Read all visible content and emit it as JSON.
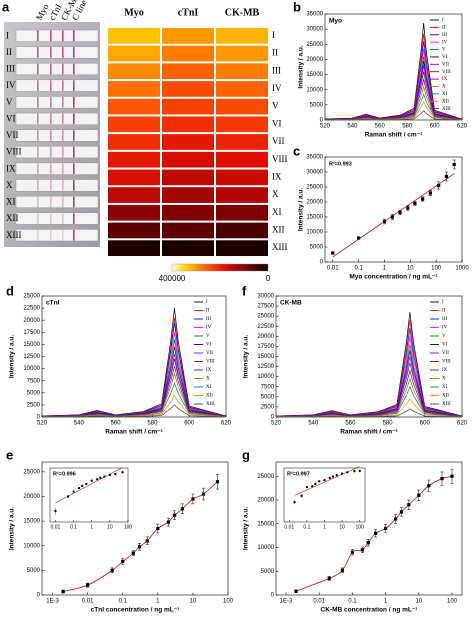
{
  "chart_data": [
    {
      "type": "heatmap",
      "label": "a",
      "strip_lines": [
        "Myo",
        "cTnI",
        "CK-MB",
        "C line"
      ],
      "columns": [
        "Myo",
        "cTnI",
        "CK-MB"
      ],
      "categories": [
        "I",
        "II",
        "III",
        "IV",
        "V",
        "VI",
        "VII",
        "VIII",
        "IX",
        "X",
        "XI",
        "XII",
        "XIII"
      ],
      "values": [
        [
          330000,
          300000,
          320000
        ],
        [
          310000,
          280000,
          300000
        ],
        [
          290000,
          260000,
          280000
        ],
        [
          270000,
          240000,
          260000
        ],
        [
          250000,
          230000,
          240000
        ],
        [
          230000,
          210000,
          220000
        ],
        [
          210000,
          190000,
          200000
        ],
        [
          190000,
          170000,
          180000
        ],
        [
          170000,
          150000,
          160000
        ],
        [
          150000,
          130000,
          140000
        ],
        [
          110000,
          100000,
          100000
        ],
        [
          70000,
          70000,
          60000
        ],
        [
          20000,
          20000,
          20000
        ]
      ],
      "zlim": [
        0,
        400000
      ],
      "zticks": [
        400000,
        0
      ]
    },
    {
      "type": "line",
      "label": "b",
      "title": "Myo",
      "xlabel": "Raman shift / cm⁻¹",
      "ylabel": "Intensity / a.u.",
      "x": [
        520,
        540,
        550,
        560,
        575,
        585,
        590,
        592,
        594,
        600,
        620
      ],
      "xlim": [
        520,
        620
      ],
      "xticks": [
        520,
        540,
        560,
        580,
        600,
        620
      ],
      "ylim": [
        0,
        35000
      ],
      "yticks": [
        0,
        5000,
        10000,
        15000,
        20000,
        25000,
        30000,
        35000
      ],
      "legend": "upper right",
      "series": [
        {
          "name": "I",
          "color": "#000000",
          "values": [
            320,
            640,
            1920,
            640,
            1600,
            3840,
            22400,
            32000,
            22400,
            3200,
            320
          ]
        },
        {
          "name": "II",
          "color": "#ff0000",
          "values": [
            285,
            570,
            1710,
            570,
            1425,
            3420,
            19950,
            28500,
            19950,
            2850,
            285
          ]
        },
        {
          "name": "III",
          "color": "#0000ff",
          "values": [
            260,
            520,
            1560,
            520,
            1300,
            3120,
            18200,
            26000,
            18200,
            2600,
            260
          ]
        },
        {
          "name": "IV",
          "color": "#ff00ff",
          "values": [
            235,
            470,
            1410,
            470,
            1175,
            2820,
            16450,
            23500,
            16450,
            2350,
            235
          ]
        },
        {
          "name": "V",
          "color": "#008000",
          "values": [
            210,
            420,
            1260,
            420,
            1050,
            2520,
            14700,
            21000,
            14700,
            2100,
            210
          ]
        },
        {
          "name": "VI",
          "color": "#000080",
          "values": [
            195,
            390,
            1170,
            390,
            975,
            2340,
            13650,
            19500,
            13650,
            1950,
            195
          ]
        },
        {
          "name": "VII",
          "color": "#8000ff",
          "values": [
            180,
            360,
            1080,
            360,
            900,
            2160,
            12600,
            18000,
            12600,
            1800,
            180
          ]
        },
        {
          "name": "VIII",
          "color": "#800040",
          "values": [
            160,
            320,
            960,
            320,
            800,
            1920,
            11200,
            16000,
            11200,
            1600,
            160
          ]
        },
        {
          "name": "IX",
          "color": "#800080",
          "values": [
            135,
            270,
            810,
            270,
            675,
            1620,
            9450,
            13500,
            9450,
            1350,
            135
          ]
        },
        {
          "name": "X",
          "color": "#808000",
          "values": [
            110,
            220,
            660,
            220,
            550,
            1320,
            7700,
            11000,
            7700,
            1100,
            110
          ]
        },
        {
          "name": "XI",
          "color": "#008080",
          "values": [
            85,
            170,
            510,
            170,
            425,
            1020,
            5950,
            8500,
            5950,
            850,
            85
          ]
        },
        {
          "name": "XII",
          "color": "#ff8000",
          "values": [
            60,
            120,
            360,
            120,
            300,
            720,
            4200,
            6000,
            4200,
            600,
            60
          ]
        },
        {
          "name": "XIII",
          "color": "#404040",
          "values": [
            30,
            60,
            180,
            60,
            150,
            360,
            2100,
            3000,
            2100,
            300,
            30
          ]
        }
      ]
    },
    {
      "type": "scatter",
      "label": "c",
      "annotation": "R²=0.993",
      "xlabel": "Myo concentration / ng mL⁻¹",
      "ylabel": "Intensity / a.u.",
      "log_x": true,
      "fit": "linear",
      "fit_color": "#d40000",
      "color": "#000000",
      "xlim": [
        0.005,
        1000
      ],
      "xticks": [
        0.01,
        0.1,
        1,
        10,
        100,
        1000
      ],
      "ylim": [
        0,
        35000
      ],
      "yticks": [
        0,
        5000,
        10000,
        15000,
        20000,
        25000,
        30000,
        35000
      ],
      "x": [
        0.01,
        0.1,
        1,
        2,
        4,
        8,
        15,
        30,
        60,
        125,
        250,
        500
      ],
      "values": [
        3000,
        8000,
        13500,
        15000,
        16500,
        18000,
        19500,
        21000,
        23000,
        25500,
        28500,
        32500
      ],
      "errors": [
        300,
        400,
        800,
        900,
        700,
        800,
        600,
        700,
        900,
        1200,
        1500,
        1500
      ]
    },
    {
      "type": "line",
      "label": "d",
      "title": "cTnI",
      "xlabel": "Raman shift / cm⁻¹",
      "ylabel": "Intensity / a.u.",
      "x": [
        520,
        540,
        550,
        560,
        575,
        585,
        590,
        592,
        594,
        600,
        620
      ],
      "xlim": [
        520,
        620
      ],
      "xticks": [
        520,
        540,
        560,
        580,
        600,
        620
      ],
      "ylim": [
        0,
        25000
      ],
      "yticks": [
        0,
        2500,
        5000,
        7500,
        10000,
        12500,
        15000,
        17500,
        20000,
        22500,
        25000
      ],
      "legend": "upper right",
      "series": [
        {
          "name": "I",
          "color": "#000000",
          "values": [
            225,
            450,
            1350,
            450,
            1125,
            2700,
            15750,
            22500,
            15750,
            2250,
            225
          ]
        },
        {
          "name": "II",
          "color": "#ff0000",
          "values": [
            205,
            410,
            1230,
            410,
            1025,
            2460,
            14350,
            20500,
            14350,
            2050,
            205
          ]
        },
        {
          "name": "III",
          "color": "#0000ff",
          "values": [
            195,
            390,
            1170,
            390,
            975,
            2340,
            13650,
            19500,
            13650,
            1950,
            195
          ]
        },
        {
          "name": "IV",
          "color": "#ff00ff",
          "values": [
            175,
            350,
            1050,
            350,
            875,
            2100,
            12250,
            17500,
            12250,
            1750,
            175
          ]
        },
        {
          "name": "V",
          "color": "#008000",
          "values": [
            160,
            320,
            960,
            320,
            800,
            1920,
            11200,
            16000,
            11200,
            1600,
            160
          ]
        },
        {
          "name": "VI",
          "color": "#000080",
          "values": [
            145,
            290,
            870,
            290,
            725,
            1740,
            10150,
            14500,
            10150,
            1450,
            145
          ]
        },
        {
          "name": "VII",
          "color": "#8000ff",
          "values": [
            130,
            260,
            780,
            260,
            650,
            1560,
            9100,
            13000,
            9100,
            1300,
            130
          ]
        },
        {
          "name": "VIII",
          "color": "#800040",
          "values": [
            120,
            240,
            720,
            240,
            600,
            1440,
            8400,
            12000,
            8400,
            1200,
            120
          ]
        },
        {
          "name": "IX",
          "color": "#800080",
          "values": [
            105,
            210,
            630,
            210,
            525,
            1260,
            7350,
            10500,
            7350,
            1050,
            105
          ]
        },
        {
          "name": "X",
          "color": "#808000",
          "values": [
            90,
            180,
            540,
            180,
            450,
            1080,
            6300,
            9000,
            6300,
            900,
            90
          ]
        },
        {
          "name": "XI",
          "color": "#008080",
          "values": [
            70,
            140,
            420,
            140,
            350,
            840,
            4900,
            7000,
            4900,
            700,
            70
          ]
        },
        {
          "name": "XII",
          "color": "#ff8000",
          "values": [
            45,
            90,
            270,
            90,
            225,
            540,
            3150,
            4500,
            3150,
            450,
            45
          ]
        },
        {
          "name": "XIII",
          "color": "#404040",
          "values": [
            25,
            50,
            150,
            50,
            125,
            300,
            1750,
            2500,
            1750,
            250,
            25
          ]
        }
      ]
    },
    {
      "type": "line",
      "label": "f",
      "title": "CK-MB",
      "xlabel": "Raman shift / cm⁻¹",
      "ylabel": "Intensity / a.u.",
      "x": [
        520,
        540,
        550,
        560,
        575,
        585,
        590,
        592,
        594,
        600,
        620
      ],
      "xlim": [
        520,
        620
      ],
      "xticks": [
        520,
        540,
        560,
        580,
        600,
        620
      ],
      "ylim": [
        0,
        30000
      ],
      "yticks": [
        0,
        2500,
        5000,
        7500,
        10000,
        12500,
        15000,
        17500,
        20000,
        22500,
        25000,
        27500,
        30000
      ],
      "legend": "upper right",
      "series": [
        {
          "name": "I",
          "color": "#000000",
          "values": [
            260,
            520,
            1560,
            520,
            1300,
            3120,
            18200,
            26000,
            18200,
            2600,
            260
          ]
        },
        {
          "name": "II",
          "color": "#ff0000",
          "values": [
            240,
            480,
            1440,
            480,
            1200,
            2880,
            16800,
            24000,
            16800,
            2400,
            240
          ]
        },
        {
          "name": "III",
          "color": "#0000ff",
          "values": [
            220,
            440,
            1320,
            440,
            1100,
            2640,
            15400,
            22000,
            15400,
            2200,
            220
          ]
        },
        {
          "name": "IV",
          "color": "#ff00ff",
          "values": [
            200,
            400,
            1200,
            400,
            1000,
            2400,
            14000,
            20000,
            14000,
            2000,
            200
          ]
        },
        {
          "name": "V",
          "color": "#008000",
          "values": [
            180,
            360,
            1080,
            360,
            900,
            2160,
            12600,
            18000,
            12600,
            1800,
            180
          ]
        },
        {
          "name": "VI",
          "color": "#000080",
          "values": [
            165,
            330,
            990,
            330,
            825,
            1980,
            11550,
            16500,
            11550,
            1650,
            165
          ]
        },
        {
          "name": "VII",
          "color": "#8000ff",
          "values": [
            150,
            300,
            900,
            300,
            750,
            1800,
            10500,
            15000,
            10500,
            1500,
            150
          ]
        },
        {
          "name": "VIII",
          "color": "#800040",
          "values": [
            135,
            270,
            810,
            270,
            675,
            1620,
            9450,
            13500,
            9450,
            1350,
            135
          ]
        },
        {
          "name": "IX",
          "color": "#800080",
          "values": [
            115,
            230,
            690,
            230,
            575,
            1380,
            8050,
            11500,
            8050,
            1150,
            115
          ]
        },
        {
          "name": "X",
          "color": "#808000",
          "values": [
            95,
            190,
            570,
            190,
            475,
            1140,
            6650,
            9500,
            6650,
            950,
            95
          ]
        },
        {
          "name": "XI",
          "color": "#008080",
          "values": [
            75,
            150,
            450,
            150,
            375,
            900,
            5250,
            7500,
            5250,
            750,
            75
          ]
        },
        {
          "name": "XII",
          "color": "#ff8000",
          "values": [
            45,
            90,
            270,
            90,
            225,
            540,
            3150,
            4500,
            3150,
            450,
            45
          ]
        },
        {
          "name": "XIII",
          "color": "#404040",
          "values": [
            20,
            40,
            120,
            40,
            100,
            240,
            1400,
            2000,
            1400,
            200,
            20
          ]
        }
      ]
    },
    {
      "type": "scatter",
      "label": "e",
      "xlabel": "cTnI concentration / ng mL⁻¹",
      "ylabel": "Intensity / a.u.",
      "log_x": true,
      "fit": "smooth",
      "fit_color": "#d40000",
      "color": "#000000",
      "xlim": [
        0.0005,
        100
      ],
      "xticks": [
        {
          "value": 0.001,
          "label": "1E-3"
        },
        0.01,
        0.1,
        1,
        10,
        100
      ],
      "ylim": [
        0,
        27000
      ],
      "yticks": [
        0,
        5000,
        10000,
        15000,
        20000,
        25000
      ],
      "x": [
        0.002,
        0.01,
        0.05,
        0.1,
        0.2,
        0.3,
        0.5,
        1,
        2,
        3,
        5,
        10,
        20,
        50
      ],
      "values": [
        700,
        2000,
        5000,
        6800,
        8500,
        9800,
        11000,
        13500,
        14800,
        16200,
        17500,
        19500,
        20500,
        23000
      ],
      "errors": [
        300,
        400,
        500,
        600,
        500,
        700,
        800,
        900,
        800,
        900,
        1000,
        1000,
        1200,
        1500
      ],
      "inset": {
        "annotation": "R²=0.996",
        "xlim": [
          0.005,
          100
        ],
        "xticks": [
          0.01,
          0.1,
          1,
          10,
          100
        ],
        "ylim": [
          1000,
          30000
        ],
        "log_y": true
      }
    },
    {
      "type": "scatter",
      "label": "g",
      "xlabel": "CK-MB concentration / ng mL⁻¹",
      "ylabel": "Intensity / a.u.",
      "log_x": true,
      "fit": "smooth",
      "fit_color": "#d40000",
      "color": "#000000",
      "xlim": [
        0.0005,
        200
      ],
      "xticks": [
        {
          "value": 0.001,
          "label": "1E-3"
        },
        0.01,
        0.1,
        1,
        10,
        100
      ],
      "ylim": [
        0,
        28000
      ],
      "yticks": [
        0,
        5000,
        10000,
        15000,
        20000,
        25000
      ],
      "x": [
        0.002,
        0.02,
        0.05,
        0.1,
        0.2,
        0.3,
        0.5,
        1,
        2,
        3,
        5,
        10,
        20,
        50,
        100
      ],
      "values": [
        800,
        3500,
        5200,
        9000,
        9500,
        11000,
        13000,
        14000,
        16000,
        17500,
        19000,
        21000,
        23000,
        24500,
        25000
      ],
      "errors": [
        300,
        400,
        500,
        600,
        600,
        700,
        800,
        800,
        900,
        900,
        1000,
        1100,
        1200,
        1400,
        1500
      ],
      "inset": {
        "annotation": "R²=0.997",
        "xlim": [
          0.005,
          200
        ],
        "xticks": [
          0.01,
          0.1,
          1,
          10,
          100
        ],
        "ylim": [
          1000,
          30000
        ],
        "log_y": true
      }
    }
  ]
}
